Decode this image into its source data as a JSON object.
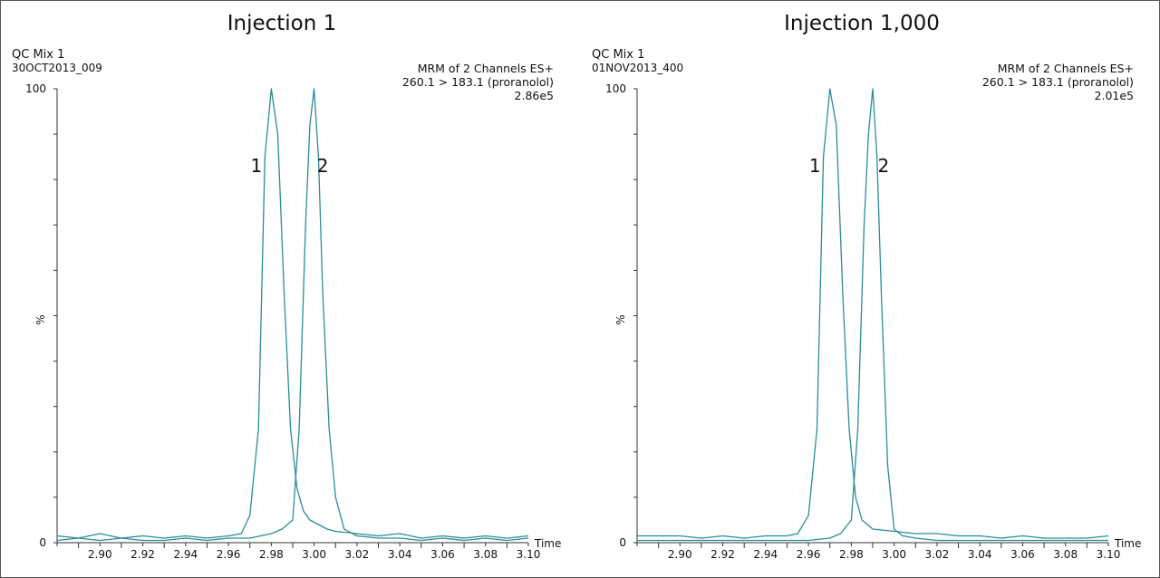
{
  "panels": [
    {
      "title": "Injection 1",
      "sample_name": "QC Mix 1",
      "sample_id": "30OCT2013_009",
      "channel_line1": "MRM of 2 Channels ES+",
      "channel_line2": "260.1 > 183.1 (proranolol)",
      "intensity": "2.86e5"
    },
    {
      "title": "Injection 1,000",
      "sample_name": "QC Mix 1",
      "sample_id": "01NOV2013_400",
      "channel_line1": "MRM of 2 Channels ES+",
      "channel_line2": "260.1 > 183.1 (proranolol)",
      "intensity": "2.01e5"
    }
  ],
  "colors": {
    "trace": "#2a8c96",
    "axis": "#333333"
  },
  "chart_data": [
    {
      "type": "line",
      "title": "Injection 1",
      "xlabel": "Time",
      "ylabel": "%",
      "xlim": [
        2.88,
        3.1
      ],
      "ylim": [
        0,
        100
      ],
      "x_ticks": [
        "2.90",
        "2.92",
        "2.94",
        "2.96",
        "2.98",
        "3.00",
        "3.02",
        "3.04",
        "3.06",
        "3.08",
        "3.10"
      ],
      "y_ticks": [
        "0",
        "100"
      ],
      "grid": false,
      "series": [
        {
          "name": "1",
          "x": [
            2.88,
            2.89,
            2.9,
            2.91,
            2.92,
            2.93,
            2.94,
            2.95,
            2.96,
            2.966,
            2.97,
            2.974,
            2.977,
            2.98,
            2.983,
            2.986,
            2.989,
            2.992,
            2.995,
            2.998,
            3.002,
            3.006,
            3.01,
            3.02,
            3.03,
            3.04,
            3.05,
            3.06,
            3.07,
            3.08,
            3.09,
            3.1
          ],
          "y": [
            1.5,
            1.0,
            2.0,
            1.0,
            1.5,
            1.0,
            1.5,
            1.0,
            1.5,
            2.0,
            6.0,
            25.0,
            85.0,
            100.0,
            90.0,
            55.0,
            25.0,
            12.0,
            7.0,
            5.0,
            4.0,
            3.0,
            2.5,
            2.0,
            1.5,
            2.0,
            1.0,
            1.5,
            1.0,
            1.5,
            1.0,
            1.5
          ]
        },
        {
          "name": "2",
          "x": [
            2.88,
            2.89,
            2.9,
            2.91,
            2.92,
            2.93,
            2.94,
            2.95,
            2.96,
            2.97,
            2.98,
            2.985,
            2.99,
            2.993,
            2.996,
            2.998,
            3.0,
            3.002,
            3.004,
            3.007,
            3.01,
            3.014,
            3.02,
            3.03,
            3.04,
            3.05,
            3.06,
            3.07,
            3.08,
            3.09,
            3.1
          ],
          "y": [
            0.5,
            1.0,
            0.5,
            1.0,
            0.5,
            0.5,
            1.0,
            0.5,
            1.0,
            1.0,
            2.0,
            3.0,
            5.0,
            25.0,
            70.0,
            92.0,
            100.0,
            85.0,
            55.0,
            25.0,
            10.0,
            3.0,
            1.5,
            1.0,
            1.0,
            0.5,
            1.0,
            0.5,
            1.0,
            0.5,
            1.0
          ]
        }
      ],
      "annotations": [
        {
          "text": "1",
          "x": 2.973,
          "y": 83
        },
        {
          "text": "2",
          "x": 3.004,
          "y": 83
        }
      ]
    },
    {
      "type": "line",
      "title": "Injection 1,000",
      "xlabel": "Time",
      "ylabel": "%",
      "xlim": [
        2.88,
        3.1
      ],
      "ylim": [
        0,
        100
      ],
      "x_ticks": [
        "2.90",
        "2.92",
        "2.94",
        "2.96",
        "2.98",
        "3.00",
        "3.02",
        "3.04",
        "3.06",
        "3.08",
        "3.10"
      ],
      "y_ticks": [
        "0",
        "100"
      ],
      "grid": false,
      "series": [
        {
          "name": "1",
          "x": [
            2.88,
            2.89,
            2.9,
            2.91,
            2.92,
            2.93,
            2.94,
            2.95,
            2.955,
            2.96,
            2.964,
            2.967,
            2.97,
            2.973,
            2.976,
            2.979,
            2.982,
            2.985,
            2.99,
            3.0,
            3.01,
            3.02,
            3.03,
            3.04,
            3.05,
            3.06,
            3.07,
            3.08,
            3.09,
            3.1
          ],
          "y": [
            1.5,
            1.5,
            1.5,
            1.0,
            1.5,
            1.0,
            1.5,
            1.5,
            2.0,
            6.0,
            25.0,
            85.0,
            100.0,
            92.0,
            55.0,
            25.0,
            10.0,
            5.0,
            3.0,
            2.5,
            2.0,
            2.0,
            1.5,
            1.5,
            1.0,
            1.5,
            1.0,
            1.0,
            1.0,
            1.5
          ]
        },
        {
          "name": "2",
          "x": [
            2.88,
            2.89,
            2.9,
            2.91,
            2.92,
            2.93,
            2.94,
            2.95,
            2.96,
            2.97,
            2.975,
            2.98,
            2.983,
            2.986,
            2.988,
            2.99,
            2.992,
            2.994,
            2.997,
            3.0,
            3.004,
            3.01,
            3.02,
            3.03,
            3.04,
            3.05,
            3.06,
            3.07,
            3.08,
            3.09,
            3.1
          ],
          "y": [
            0.5,
            0.5,
            0.5,
            0.5,
            0.5,
            0.5,
            0.5,
            0.5,
            0.5,
            1.0,
            2.0,
            5.0,
            25.0,
            70.0,
            90.0,
            100.0,
            85.0,
            55.0,
            17.0,
            3.0,
            1.5,
            1.0,
            0.5,
            0.5,
            0.5,
            0.5,
            0.5,
            0.5,
            0.5,
            0.5,
            0.5
          ]
        }
      ],
      "annotations": [
        {
          "text": "1",
          "x": 2.963,
          "y": 83
        },
        {
          "text": "2",
          "x": 2.995,
          "y": 83
        }
      ]
    }
  ]
}
